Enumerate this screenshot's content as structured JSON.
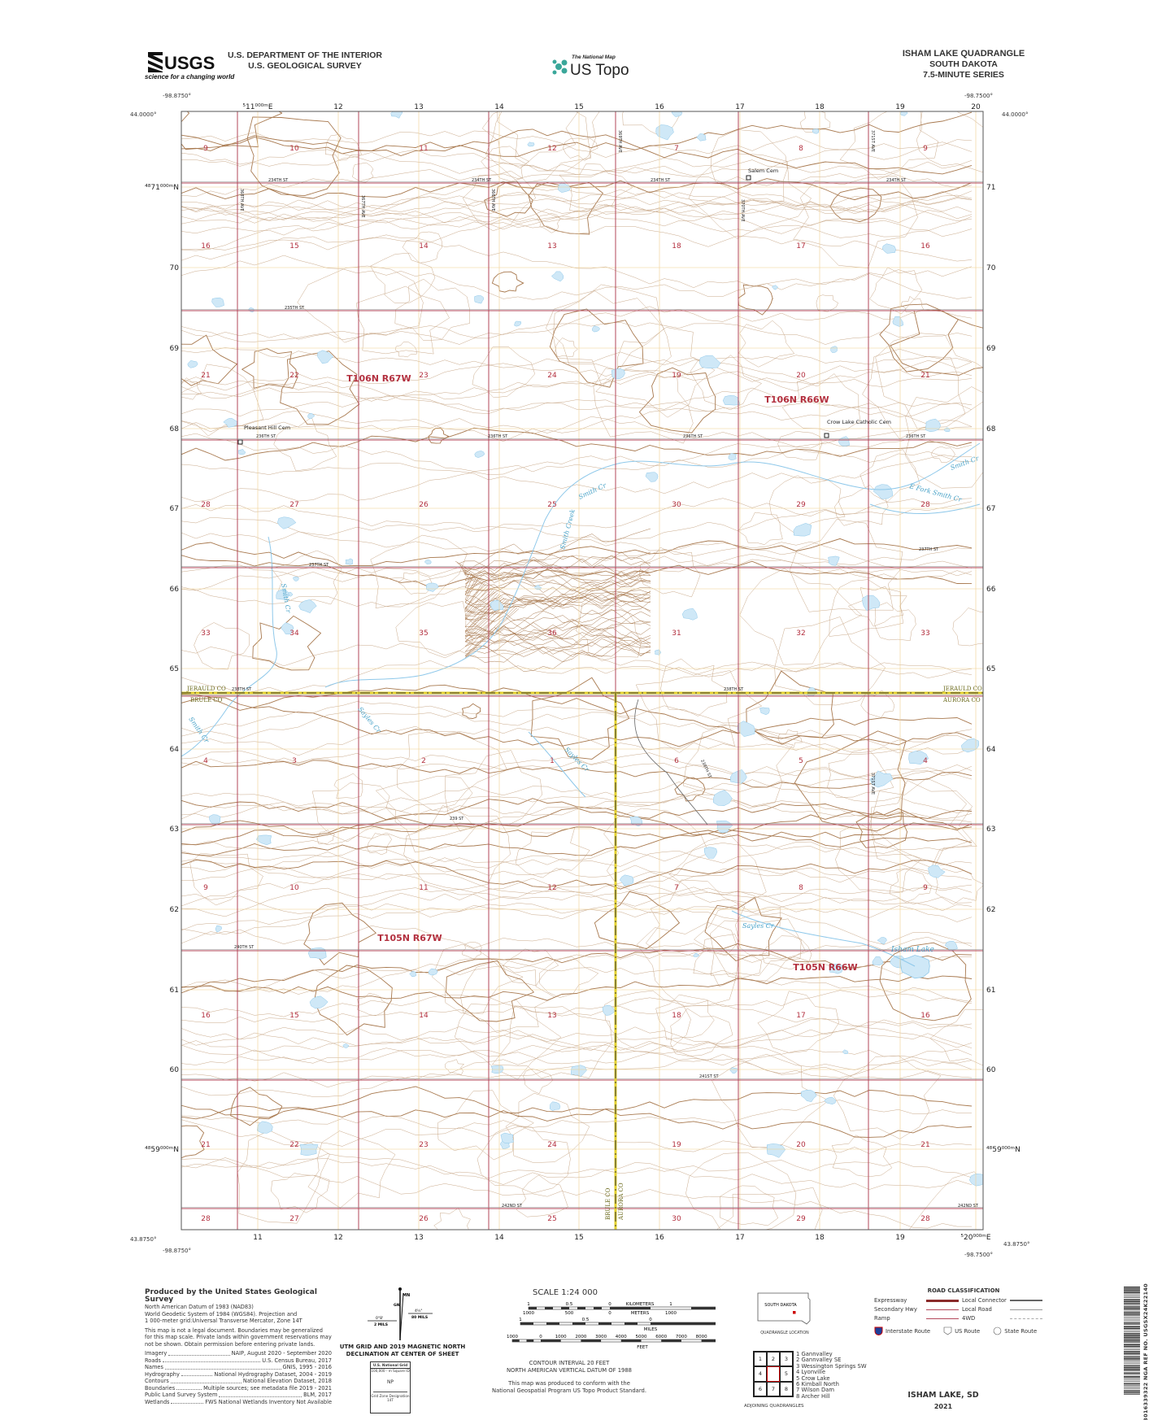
{
  "header": {
    "agency_logo_text": "USGS",
    "agency_tagline": "science for a changing world",
    "department": "U.S. DEPARTMENT OF THE INTERIOR",
    "survey": "U.S. GEOLOGICAL SURVEY",
    "national_map": "The National Map",
    "us_topo": "US Topo",
    "title": "ISHAM LAKE QUADRANGLE",
    "state": "SOUTH DAKOTA",
    "series": "7.5-MINUTE SERIES"
  },
  "map": {
    "corners": {
      "nw_lon": "-98.8750°",
      "nw_lat": "44.0000°",
      "ne_lon": "-98.7500°",
      "ne_lat": "44.0000°",
      "sw_lon": "-98.8750°",
      "sw_lat": "43.8750°",
      "se_lon": "-98.7500°",
      "se_lat": "43.8750°"
    },
    "utm_easting_labels": [
      "⁵11⁰⁰⁰ᵐE",
      "12",
      "13",
      "14",
      "15",
      "16",
      "17",
      "18",
      "19",
      "20"
    ],
    "utm_easting_bottom_labels": [
      "11",
      "12",
      "13",
      "14",
      "15",
      "16",
      "17",
      "18",
      "19",
      "⁵20⁰⁰⁰ᵐE"
    ],
    "utm_northing_labels": [
      "⁴⁸71⁰⁰⁰ᵐN",
      "70",
      "69",
      "68",
      "67",
      "66",
      "65",
      "64",
      "63",
      "62",
      "61",
      "60",
      "⁴⁸59⁰⁰⁰ᵐN"
    ],
    "utm_northing_right_labels": [
      "71",
      "70",
      "69",
      "68",
      "67",
      "66",
      "65",
      "64",
      "63",
      "62",
      "61",
      "60",
      "⁴⁸59⁰⁰⁰ᵐN"
    ],
    "section_rows": [
      [
        "9",
        "10",
        "11",
        "12",
        "7",
        "8",
        "9"
      ],
      [
        "16",
        "15",
        "14",
        "13",
        "18",
        "17",
        "16"
      ],
      [
        "21",
        "22",
        "23",
        "24",
        "19",
        "20",
        "21"
      ],
      [
        "28",
        "27",
        "26",
        "25",
        "30",
        "29",
        "28"
      ],
      [
        "33",
        "34",
        "35",
        "36",
        "31",
        "32",
        "33"
      ],
      [
        "4",
        "3",
        "2",
        "1",
        "6",
        "5",
        "4"
      ],
      [
        "9",
        "10",
        "11",
        "12",
        "7",
        "8",
        "9"
      ],
      [
        "16",
        "15",
        "14",
        "13",
        "18",
        "17",
        "16"
      ],
      [
        "21",
        "22",
        "23",
        "24",
        "19",
        "20",
        "21"
      ],
      [
        "28",
        "27",
        "26",
        "25",
        "30",
        "29",
        "28"
      ]
    ],
    "townships": [
      "T106N R67W",
      "T106N R66W",
      "T105N R67W",
      "T105N R66W"
    ],
    "places": [
      "Salem Cem",
      "Pleasant Hill Cem",
      "Crow Lake Catholic Cem"
    ],
    "water": [
      "Smith Cr",
      "Smith Creek",
      "Smith Cr",
      "E Fork Smith Cr",
      "Smith Cr",
      "Smith Cr",
      "Sayles Cr",
      "Sayles Cr",
      "Sayles Cr",
      "Isham Lake"
    ],
    "roads": [
      "234TH ST",
      "234TH ST",
      "234TH ST",
      "234TH ST",
      "235TH ST",
      "236TH ST",
      "236TH ST",
      "236TH ST",
      "236TH ST",
      "237TH ST",
      "237TH ST",
      "238TH ST",
      "238TH ST",
      "239TH ST",
      "239 ST",
      "240TH ST",
      "241ST ST",
      "242ND ST",
      "242ND ST",
      "368TH AVE",
      "367TH AVE",
      "366TH AVE",
      "369TH AVE",
      "370TH AVE",
      "371ST AVE",
      "371ST AVE"
    ],
    "counties": [
      "JERAULD CO",
      "BRULE CO",
      "JERAULD CO",
      "AURORA CO",
      "BRULE CO",
      "AURORA CO"
    ],
    "colors": {
      "section_line": "#b3475a",
      "utm_grid": "#f0cf8e",
      "contour": "#c9a98a",
      "index_contour": "#a8794f",
      "water": "#8ec8ea",
      "water_fill": "#cfe8f7",
      "road": "#8a8a8a",
      "county_line": "#e3d12f",
      "label_red": "#b3303f"
    }
  },
  "footer": {
    "producer": "Produced by the United States Geological Survey",
    "datum_lines": [
      "North American Datum of 1983 (NAD83)",
      "World Geodetic System of 1984 (WGS84). Projection and",
      "1 000-meter grid:Universal Transverse Mercator, Zone 14T"
    ],
    "disclaimer": "This map is not a legal document. Boundaries may be generalized for this map scale. Private lands within government reservations may not be shown. Obtain permission before entering private lands.",
    "sources": [
      {
        "label": "Imagery",
        "value": "NAIP, August 2020 - September 2020"
      },
      {
        "label": "Roads",
        "value": "U.S. Census Bureau, 2017"
      },
      {
        "label": "Names",
        "value": "GNIS, 1995 - 2016"
      },
      {
        "label": "Hydrography",
        "value": "National Hydrography Dataset, 2004 - 2019"
      },
      {
        "label": "Contours",
        "value": "National Elevation Dataset, 2018"
      },
      {
        "label": "Boundaries",
        "value": "Multiple sources; see metadata file 2019 - 2021"
      },
      {
        "label": "Public Land Survey System",
        "value": "BLM, 2017"
      },
      {
        "label": "Wetlands",
        "value": "FWS National Wetlands Inventory Not Available"
      }
    ],
    "declination": {
      "mn": "MN",
      "gn": "GN",
      "grid_angle": "0°8'",
      "grid_mils": "2 MILS",
      "mag_angle": "4½°",
      "mag_mils": "80 MILS",
      "caption_1": "UTM GRID AND 2019 MAGNETIC NORTH",
      "caption_2": "DECLINATION AT CENTER OF SHEET"
    },
    "usng": {
      "title": "U.S. National Grid",
      "subtitle": "100,000 - m Square ID",
      "square_id": "NP",
      "gzd_label": "Grid Zone Designation",
      "gzd": "14T"
    },
    "scale": {
      "title": "SCALE 1:24 000",
      "km_ticks": [
        "1",
        "0.5",
        "0",
        "1",
        "2"
      ],
      "km_label": "KILOMETERS",
      "m_ticks": [
        "1000",
        "500",
        "0",
        "1000",
        "2000"
      ],
      "m_label": "METERS",
      "mi_ticks": [
        "1",
        "0.5",
        "0",
        "1"
      ],
      "mi_label": "MILES",
      "ft_ticks": [
        "1000",
        "0",
        "1000",
        "2000",
        "3000",
        "4000",
        "5000",
        "6000",
        "7000",
        "8000",
        "9000",
        "10000"
      ],
      "ft_label": "FEET"
    },
    "contour_interval": "CONTOUR INTERVAL 20 FEET",
    "vertical_datum": "NORTH AMERICAN VERTICAL DATUM OF 1988",
    "conform_1": "This map was produced to conform with the",
    "conform_2": "National Geospatial Program US Topo Product Standard.",
    "location_state": "SOUTH DAKOTA",
    "location_label": "QUADRANGLE LOCATION",
    "road_classification": {
      "title": "ROAD CLASSIFICATION",
      "expressway": "Expressway",
      "secondary": "Secondary Hwy",
      "ramp": "Ramp",
      "local_connector": "Local Connector",
      "local_road": "Local Road",
      "fourwd": "4WD",
      "interstate": "Interstate Route",
      "us_route": "US Route",
      "state_route": "State Route"
    },
    "adjoining_grid": [
      "1",
      "2",
      "3",
      "4",
      "",
      "5",
      "6",
      "7",
      "8"
    ],
    "adjoining": [
      "1 Gannvalley",
      "2 Gannvalley SE",
      "3 Wessington Springs SW",
      "4 Lyonville",
      "5 Crow Lake",
      "6 Kimball North",
      "7 Wilson Dam",
      "8 Archer Hill"
    ],
    "adjoining_label": "ADJOINING QUADRANGLES",
    "map_name": "ISHAM LAKE, SD",
    "year": "2021",
    "barcode_text": "NSN. 7643016339322 NGA REF NO. USGSX24K22140"
  }
}
